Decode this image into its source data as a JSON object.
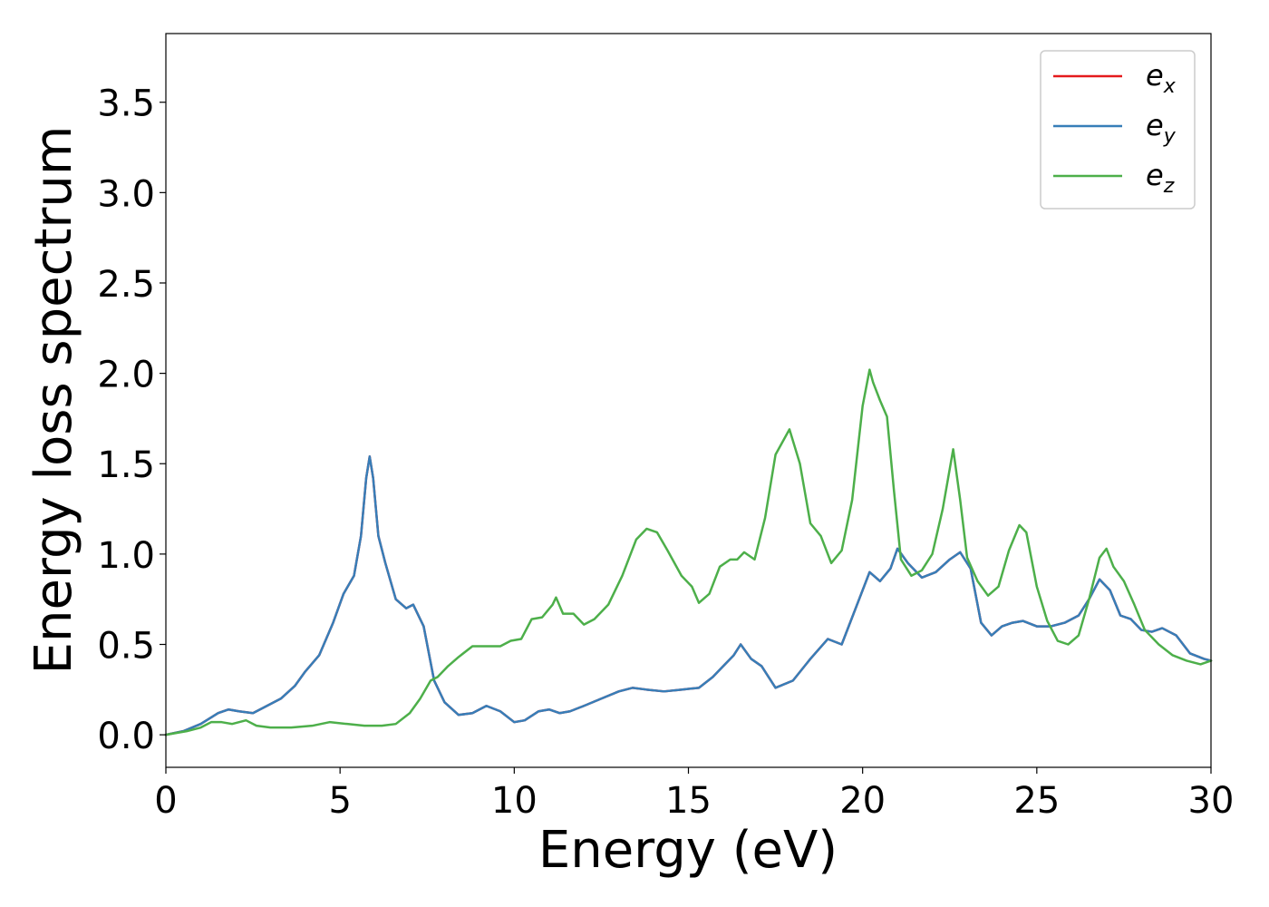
{
  "chart_data": {
    "type": "line",
    "xlabel": "Energy (eV)",
    "ylabel": "Energy loss spectrum",
    "xlim": [
      0,
      30
    ],
    "ylim": [
      -0.18,
      3.88
    ],
    "x_ticks": [
      "0",
      "5",
      "10",
      "15",
      "20",
      "25",
      "30"
    ],
    "y_ticks": [
      "0.0",
      "0.5",
      "1.0",
      "1.5",
      "2.0",
      "2.5",
      "3.0",
      "3.5"
    ],
    "grid": false,
    "legend_position": "top-right",
    "series": [
      {
        "name": "e",
        "subscript": "x",
        "color": "#e41a1c",
        "x": [
          0,
          0.5,
          1.0,
          1.5,
          1.8,
          2.1,
          2.5,
          2.9,
          3.3,
          3.7,
          4.0,
          4.4,
          4.8,
          5.1,
          5.4,
          5.6,
          5.75,
          5.85,
          5.95,
          6.1,
          6.3,
          6.6,
          6.9,
          7.1,
          7.4,
          7.7,
          8.0,
          8.4,
          8.8,
          9.2,
          9.6,
          10.0,
          10.3,
          10.7,
          11.0,
          11.3,
          11.6,
          12.0,
          12.5,
          13.0,
          13.4,
          13.8,
          14.3,
          14.8,
          15.3,
          15.7,
          16.0,
          16.3,
          16.5,
          16.8,
          17.1,
          17.5,
          18.0,
          18.5,
          19.0,
          19.4,
          19.8,
          20.2,
          20.5,
          20.8,
          21.0,
          21.3,
          21.7,
          22.1,
          22.5,
          22.8,
          23.1,
          23.4,
          23.7,
          24.0,
          24.3,
          24.6,
          25.0,
          25.4,
          25.8,
          26.2,
          26.5,
          26.8,
          27.1,
          27.4,
          27.7,
          28.0,
          28.3,
          28.6,
          29.0,
          29.4,
          29.8,
          30.0
        ],
        "y": [
          0.0,
          0.02,
          0.06,
          0.12,
          0.14,
          0.13,
          0.12,
          0.16,
          0.2,
          0.27,
          0.35,
          0.44,
          0.62,
          0.78,
          0.88,
          1.1,
          1.42,
          1.54,
          1.42,
          1.1,
          0.95,
          0.75,
          0.7,
          0.72,
          0.6,
          0.3,
          0.18,
          0.11,
          0.12,
          0.16,
          0.13,
          0.07,
          0.08,
          0.13,
          0.14,
          0.12,
          0.13,
          0.16,
          0.2,
          0.24,
          0.26,
          0.25,
          0.24,
          0.25,
          0.26,
          0.32,
          0.38,
          0.44,
          0.5,
          0.42,
          0.38,
          0.26,
          0.3,
          0.42,
          0.53,
          0.5,
          0.7,
          0.9,
          0.85,
          0.92,
          1.03,
          0.95,
          0.87,
          0.9,
          0.97,
          1.01,
          0.92,
          0.62,
          0.55,
          0.6,
          0.62,
          0.63,
          0.6,
          0.6,
          0.62,
          0.66,
          0.75,
          0.86,
          0.8,
          0.66,
          0.64,
          0.58,
          0.57,
          0.59,
          0.55,
          0.45,
          0.42,
          0.41
        ]
      },
      {
        "name": "e",
        "subscript": "y",
        "color": "#377eb8",
        "x": [
          0,
          0.5,
          1.0,
          1.5,
          1.8,
          2.1,
          2.5,
          2.9,
          3.3,
          3.7,
          4.0,
          4.4,
          4.8,
          5.1,
          5.4,
          5.6,
          5.75,
          5.85,
          5.95,
          6.1,
          6.3,
          6.6,
          6.9,
          7.1,
          7.4,
          7.7,
          8.0,
          8.4,
          8.8,
          9.2,
          9.6,
          10.0,
          10.3,
          10.7,
          11.0,
          11.3,
          11.6,
          12.0,
          12.5,
          13.0,
          13.4,
          13.8,
          14.3,
          14.8,
          15.3,
          15.7,
          16.0,
          16.3,
          16.5,
          16.8,
          17.1,
          17.5,
          18.0,
          18.5,
          19.0,
          19.4,
          19.8,
          20.2,
          20.5,
          20.8,
          21.0,
          21.3,
          21.7,
          22.1,
          22.5,
          22.8,
          23.1,
          23.4,
          23.7,
          24.0,
          24.3,
          24.6,
          25.0,
          25.4,
          25.8,
          26.2,
          26.5,
          26.8,
          27.1,
          27.4,
          27.7,
          28.0,
          28.3,
          28.6,
          29.0,
          29.4,
          29.8,
          30.0
        ],
        "y": [
          0.0,
          0.02,
          0.06,
          0.12,
          0.14,
          0.13,
          0.12,
          0.16,
          0.2,
          0.27,
          0.35,
          0.44,
          0.62,
          0.78,
          0.88,
          1.1,
          1.42,
          1.54,
          1.42,
          1.1,
          0.95,
          0.75,
          0.7,
          0.72,
          0.6,
          0.3,
          0.18,
          0.11,
          0.12,
          0.16,
          0.13,
          0.07,
          0.08,
          0.13,
          0.14,
          0.12,
          0.13,
          0.16,
          0.2,
          0.24,
          0.26,
          0.25,
          0.24,
          0.25,
          0.26,
          0.32,
          0.38,
          0.44,
          0.5,
          0.42,
          0.38,
          0.26,
          0.3,
          0.42,
          0.53,
          0.5,
          0.7,
          0.9,
          0.85,
          0.92,
          1.03,
          0.95,
          0.87,
          0.9,
          0.97,
          1.01,
          0.92,
          0.62,
          0.55,
          0.6,
          0.62,
          0.63,
          0.6,
          0.6,
          0.62,
          0.66,
          0.75,
          0.86,
          0.8,
          0.66,
          0.64,
          0.58,
          0.57,
          0.59,
          0.55,
          0.45,
          0.42,
          0.41
        ]
      },
      {
        "name": "e",
        "subscript": "z",
        "color": "#4daf4a",
        "x": [
          0,
          0.6,
          1.0,
          1.3,
          1.6,
          1.9,
          2.3,
          2.6,
          3.0,
          3.6,
          4.2,
          4.7,
          5.2,
          5.7,
          6.2,
          6.6,
          7.0,
          7.3,
          7.6,
          7.8,
          8.1,
          8.4,
          8.8,
          9.2,
          9.6,
          9.9,
          10.2,
          10.5,
          10.8,
          11.1,
          11.2,
          11.4,
          11.7,
          12.0,
          12.3,
          12.7,
          13.1,
          13.5,
          13.8,
          14.1,
          14.4,
          14.8,
          15.1,
          15.3,
          15.6,
          15.9,
          16.2,
          16.4,
          16.6,
          16.9,
          17.2,
          17.5,
          17.9,
          18.2,
          18.5,
          18.8,
          19.1,
          19.4,
          19.7,
          20.0,
          20.2,
          20.3,
          20.5,
          20.7,
          20.9,
          21.1,
          21.4,
          21.7,
          22.0,
          22.3,
          22.6,
          22.8,
          23.0,
          23.3,
          23.6,
          23.9,
          24.2,
          24.5,
          24.7,
          25.0,
          25.3,
          25.6,
          25.9,
          26.2,
          26.5,
          26.8,
          27.0,
          27.2,
          27.5,
          27.8,
          28.1,
          28.5,
          28.9,
          29.3,
          29.7,
          30.0
        ],
        "y": [
          0.0,
          0.02,
          0.04,
          0.07,
          0.07,
          0.06,
          0.08,
          0.05,
          0.04,
          0.04,
          0.05,
          0.07,
          0.06,
          0.05,
          0.05,
          0.06,
          0.12,
          0.2,
          0.3,
          0.32,
          0.38,
          0.43,
          0.49,
          0.49,
          0.49,
          0.52,
          0.53,
          0.64,
          0.65,
          0.72,
          0.76,
          0.67,
          0.67,
          0.61,
          0.64,
          0.72,
          0.88,
          1.08,
          1.14,
          1.12,
          1.02,
          0.88,
          0.82,
          0.73,
          0.78,
          0.93,
          0.97,
          0.97,
          1.01,
          0.97,
          1.2,
          1.55,
          1.69,
          1.5,
          1.17,
          1.1,
          0.95,
          1.02,
          1.3,
          1.82,
          2.02,
          1.95,
          1.85,
          1.76,
          1.35,
          0.97,
          0.88,
          0.91,
          1.0,
          1.25,
          1.58,
          1.3,
          0.98,
          0.85,
          0.77,
          0.82,
          1.02,
          1.16,
          1.12,
          0.82,
          0.63,
          0.52,
          0.5,
          0.55,
          0.75,
          0.98,
          1.03,
          0.93,
          0.85,
          0.72,
          0.58,
          0.5,
          0.44,
          0.41,
          0.39,
          0.41
        ]
      }
    ]
  }
}
